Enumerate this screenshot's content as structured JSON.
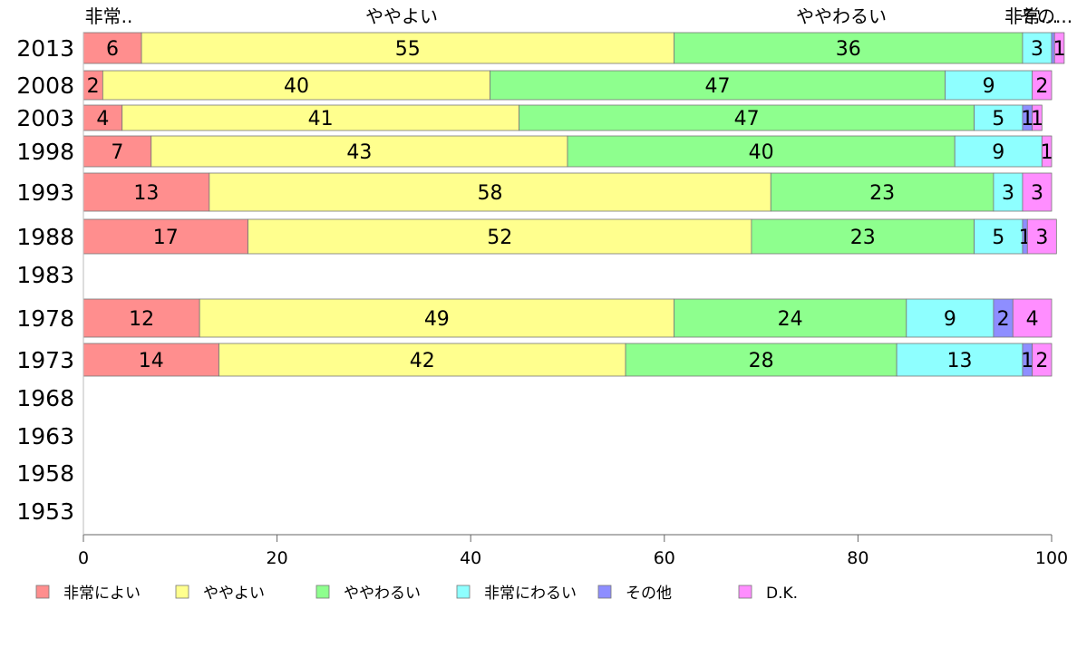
{
  "chart_data": {
    "type": "bar",
    "orientation": "horizontal",
    "stacked": true,
    "title": "",
    "xlabel": "",
    "ylabel": "",
    "xlim": [
      0,
      100
    ],
    "x_ticks": [
      "0",
      "20",
      "40",
      "60",
      "80",
      "100"
    ],
    "grid": false,
    "legend_position": "bottom-left",
    "top_labels": [
      "非常..",
      "ややよい",
      "ややわるい",
      "非常...",
      "その..."
    ],
    "categories": [
      "2013",
      "2008",
      "2003",
      "1998",
      "1993",
      "1988",
      "1983",
      "1978",
      "1973",
      "1968",
      "1963",
      "1958",
      "1953"
    ],
    "series": [
      {
        "name": "非常によい",
        "color": "#ff8e8e",
        "values": [
          6,
          2,
          4,
          7,
          13,
          17,
          null,
          12,
          14,
          null,
          null,
          null,
          null
        ],
        "labels": [
          "6",
          "2",
          "4",
          "7",
          "13",
          "17",
          "",
          "12",
          "14",
          "",
          "",
          "",
          ""
        ]
      },
      {
        "name": "ややよい",
        "color": "#ffff8e",
        "values": [
          55,
          40,
          41,
          43,
          58,
          52,
          null,
          49,
          42,
          null,
          null,
          null,
          null
        ],
        "labels": [
          "55",
          "40",
          "41",
          "43",
          "58",
          "52",
          "",
          "49",
          "42",
          "",
          "",
          "",
          ""
        ]
      },
      {
        "name": "ややわるい",
        "color": "#8eff8e",
        "values": [
          36,
          47,
          47,
          40,
          23,
          23,
          null,
          24,
          28,
          null,
          null,
          null,
          null
        ],
        "labels": [
          "36",
          "47",
          "47",
          "40",
          "23",
          "23",
          "",
          "24",
          "28",
          "",
          "",
          "",
          ""
        ]
      },
      {
        "name": "非常にわるい",
        "color": "#8effff",
        "values": [
          3,
          9,
          5,
          9,
          3,
          5,
          null,
          9,
          13,
          null,
          null,
          null,
          null
        ],
        "labels": [
          "3",
          "9",
          "5",
          "9",
          "3",
          "5",
          "",
          "9",
          "13",
          "",
          "",
          "",
          ""
        ]
      },
      {
        "name": "その他",
        "color": "#8e8eff",
        "values": [
          0.3,
          0,
          1,
          0,
          0,
          0.5,
          null,
          2,
          1,
          null,
          null,
          null,
          null
        ],
        "labels": [
          "",
          "",
          "1",
          "",
          "",
          "1",
          "",
          "2",
          "1",
          "",
          "",
          "",
          ""
        ]
      },
      {
        "name": "D.K.",
        "color": "#ff8eff",
        "values": [
          1,
          2,
          1,
          1,
          3,
          3,
          null,
          4,
          2,
          null,
          null,
          null,
          null
        ],
        "labels": [
          "1",
          "2",
          "1",
          "1",
          "3",
          "3",
          "",
          "4",
          "2",
          "",
          "",
          "",
          ""
        ]
      }
    ]
  }
}
